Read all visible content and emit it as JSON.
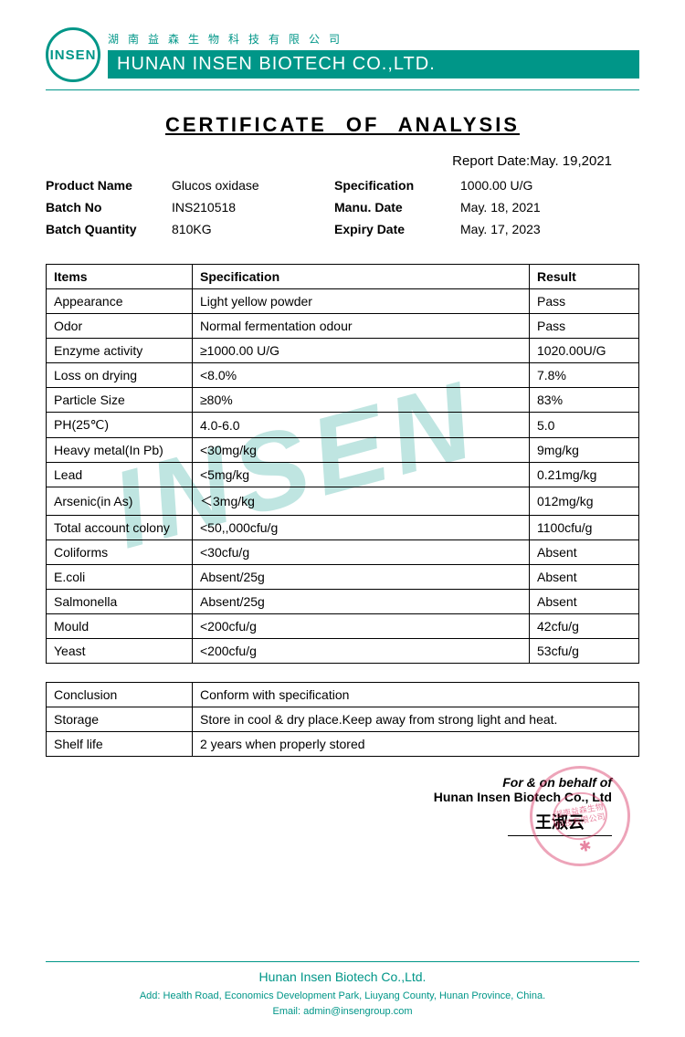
{
  "header": {
    "logo_text": "INSEN",
    "chinese_name": "湖南益森生物科技有限公司",
    "english_name": "HUNAN INSEN BIOTECH CO.,LTD."
  },
  "document": {
    "title": "CERTIFICATE OF ANALYSIS",
    "report_date_label": "Report Date:",
    "report_date": "May. 19,2021"
  },
  "info": {
    "product_name_label": "Product Name",
    "product_name": "Glucos oxidase",
    "specification_label": "Specification",
    "specification": "1000.00 U/G",
    "batch_no_label": "Batch No",
    "batch_no": "INS210518",
    "manu_date_label": "Manu. Date",
    "manu_date": "May. 18, 2021",
    "batch_qty_label": "Batch Quantity",
    "batch_qty": "810KG",
    "expiry_label": "Expiry Date",
    "expiry": "May. 17, 2023"
  },
  "table": {
    "headers": {
      "items": "Items",
      "spec": "Specification",
      "result": "Result"
    },
    "rows": [
      {
        "item": "Appearance",
        "spec": "Light yellow powder",
        "result": "Pass"
      },
      {
        "item": "Odor",
        "spec": "Normal fermentation odour",
        "result": "Pass"
      },
      {
        "item": "Enzyme activity",
        "spec": "≥1000.00 U/G",
        "result": "1020.00U/G"
      },
      {
        "item": "Loss on drying",
        "spec": "<8.0%",
        "result": "7.8%"
      },
      {
        "item": "Particle Size",
        "spec": "≥80%",
        "result": "83%"
      },
      {
        "item": "PH(25℃)",
        "spec": "4.0-6.0",
        "result": "5.0"
      },
      {
        "item": "Heavy metal(In Pb)",
        "spec": "<30mg/kg",
        "result": "9mg/kg"
      },
      {
        "item": "Lead",
        "spec": "<5mg/kg",
        "result": "0.21mg/kg"
      },
      {
        "item": "Arsenic(in As)",
        "spec": "＜3mg/kg",
        "result": "012mg/kg"
      },
      {
        "item": "Total account colony",
        "spec": "<50,,000cfu/g",
        "result": "1100cfu/g"
      },
      {
        "item": "Coliforms",
        "spec": "<30cfu/g",
        "result": "Absent"
      },
      {
        "item": "E.coli",
        "spec": "Absent/25g",
        "result": "Absent"
      },
      {
        "item": "Salmonella",
        "spec": "Absent/25g",
        "result": "Absent"
      },
      {
        "item": "Mould",
        "spec": "<200cfu/g",
        "result": "42cfu/g"
      },
      {
        "item": "Yeast",
        "spec": "<200cfu/g",
        "result": "53cfu/g"
      }
    ]
  },
  "conclusion": {
    "rows": [
      {
        "label": "Conclusion",
        "value": "Conform with specification"
      },
      {
        "label": "Storage",
        "value": "Store in cool & dry place.Keep away from strong light and heat."
      },
      {
        "label": "Shelf life",
        "value": "2 years when properly stored"
      }
    ]
  },
  "watermark": "INSEN",
  "signature": {
    "line1": "For & on behalf of",
    "line2": "Hunan Insen Biotech Co., Ltd",
    "name": "王淑云",
    "stamp_inner": "湖南益森生物\n科技有限公司"
  },
  "footer": {
    "company": "Hunan Insen Biotech Co.,Ltd.",
    "address": "Add: Health Road, Economics Development Park, Liuyang County, Hunan Province, China.",
    "email": "Email: admin@insengroup.com"
  },
  "colors": {
    "brand": "#009688",
    "stamp": "#d6285a",
    "text": "#000000",
    "background": "#ffffff"
  }
}
